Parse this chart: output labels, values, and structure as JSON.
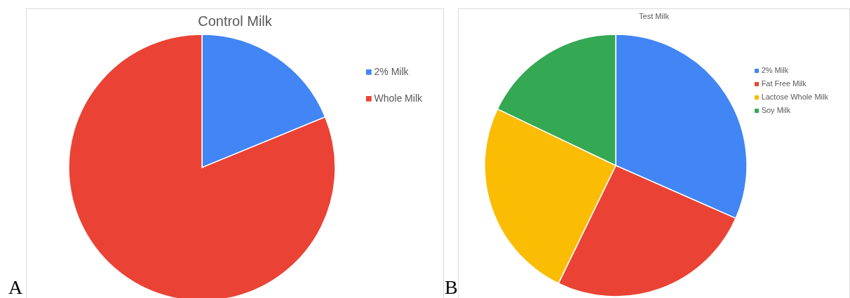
{
  "chart_data": [
    {
      "type": "pie",
      "title": "Control Milk",
      "categories": [
        "2% Milk",
        "Whole Milk"
      ],
      "values": [
        18.8,
        81.2
      ],
      "colors": [
        "#4285f4",
        "#ea4335"
      ],
      "legend": "top right",
      "annotations": [
        "A"
      ]
    },
    {
      "type": "pie",
      "title": "Test Milk",
      "categories": [
        "2% Milk",
        "Fat Free Milk",
        "Lactose Whole Milk",
        "Soy Milk"
      ],
      "values": [
        31.6,
        25.6,
        24.9,
        17.9
      ],
      "colors": [
        "#4285f4",
        "#ea4335",
        "#fbbc04",
        "#34a853"
      ],
      "legend": "top right",
      "annotations": [
        "B"
      ]
    }
  ]
}
